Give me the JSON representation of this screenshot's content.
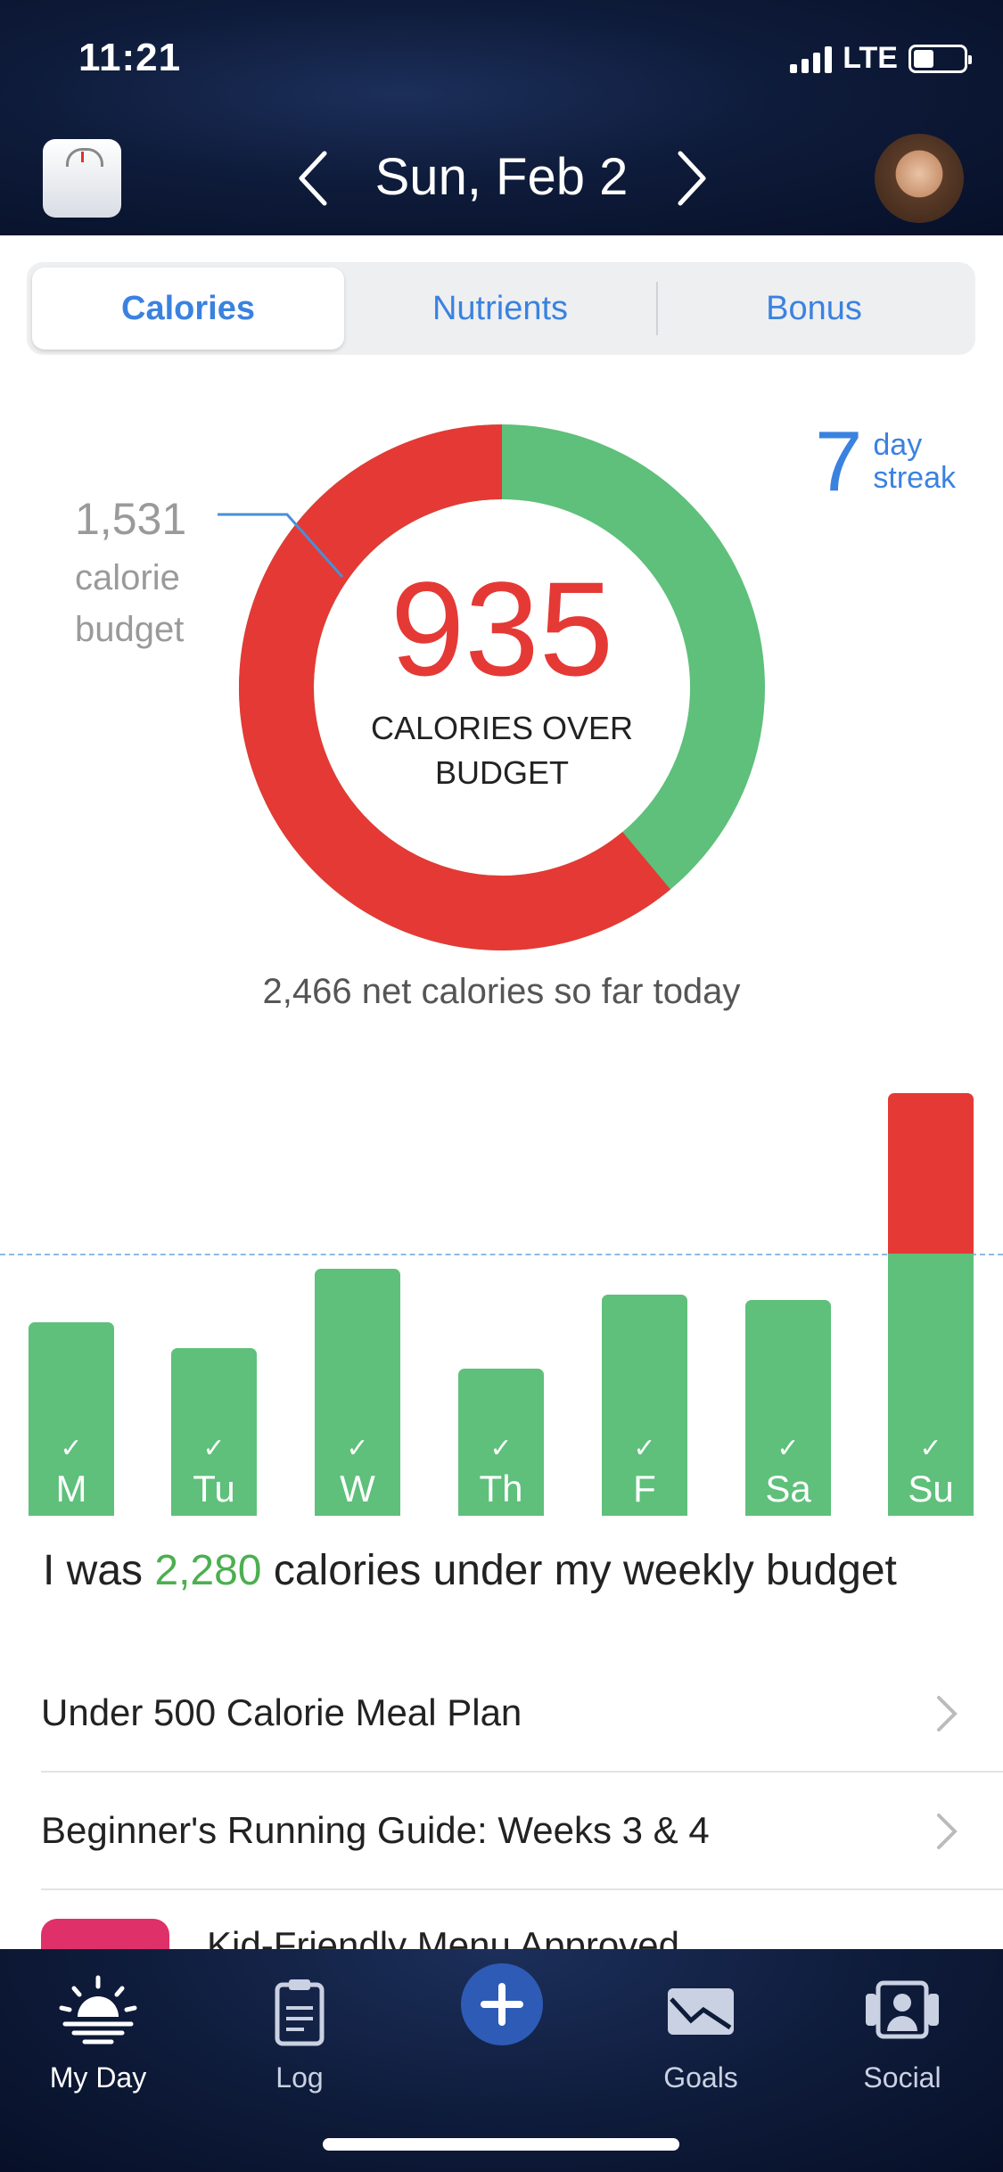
{
  "status": {
    "time": "11:21",
    "network": "LTE"
  },
  "header": {
    "date": "Sun, Feb 2"
  },
  "tabs": [
    {
      "label": "Calories",
      "active": true
    },
    {
      "label": "Nutrients",
      "active": false
    },
    {
      "label": "Bonus",
      "active": false
    }
  ],
  "donut": {
    "value": "935",
    "caption": "CALORIES OVER BUDGET",
    "budget_value": "1,531",
    "budget_label_1": "calorie",
    "budget_label_2": "budget",
    "budget": 1531,
    "consumed": 2466,
    "colors": {
      "under": "#5ec07a",
      "over": "#e53935"
    }
  },
  "streak": {
    "number": "7",
    "line1": "day",
    "line2": "streak"
  },
  "net_calories": "2,466 net calories so far today",
  "chart_data": {
    "type": "bar",
    "categories": [
      "M",
      "Tu",
      "W",
      "Th",
      "F",
      "Sa",
      "Su"
    ],
    "values": [
      1130,
      980,
      1440,
      860,
      1290,
      1260,
      2466
    ],
    "budget": 1531,
    "ylim": [
      0,
      2600
    ],
    "check_mark": "✓"
  },
  "weekly": {
    "prefix": "I was",
    "amount": "2,280",
    "suffix": "calories under my weekly budget"
  },
  "list": [
    {
      "label": "Under 500 Calorie Meal Plan"
    },
    {
      "label": "Beginner's Running Guide: Weeks 3 & 4"
    }
  ],
  "promo": {
    "label": "Kid-Friendly Menu Approved"
  },
  "tabbar": [
    {
      "label": "My Day",
      "icon": "sunrise-icon",
      "active": true
    },
    {
      "label": "Log",
      "icon": "clipboard-icon",
      "active": false
    },
    {
      "label": "Goals",
      "icon": "chart-envelope-icon",
      "active": false
    },
    {
      "label": "Social",
      "icon": "people-icon",
      "active": false
    }
  ]
}
